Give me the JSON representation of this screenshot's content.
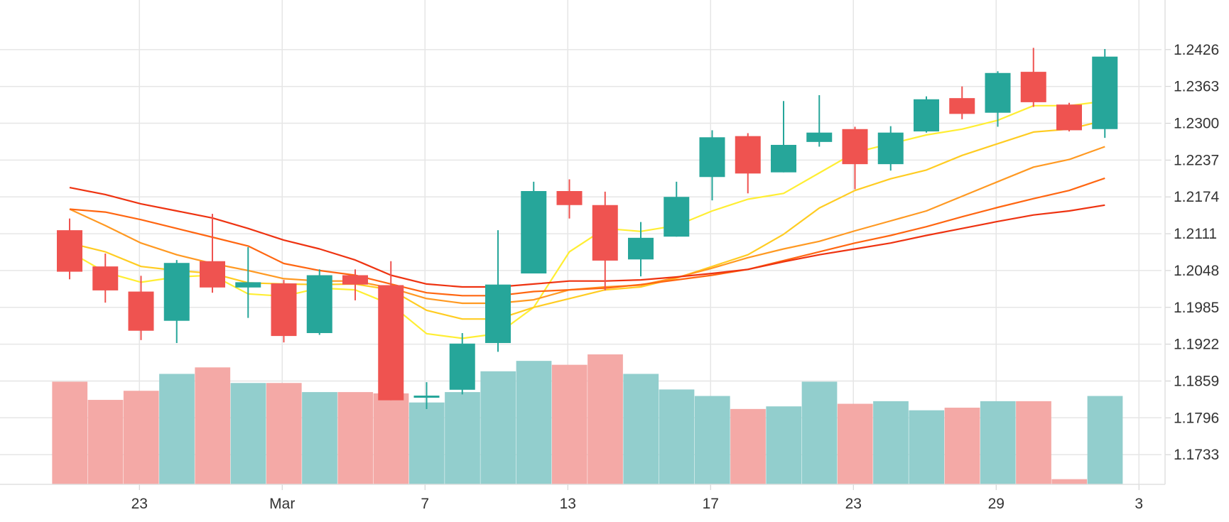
{
  "chart_data": {
    "type": "candlestick",
    "colors": {
      "up": "#26a69a",
      "down": "#ef5350",
      "volume_up": "#92cecd",
      "volume_down": "#f4a9a6",
      "grid": "#e6e6e6",
      "axis_text": "#333333",
      "ma_colors": [
        "#ffee33",
        "#ffcc22",
        "#ff9922",
        "#ff6611",
        "#ee3311"
      ]
    },
    "y_axis": {
      "position": "right",
      "ticks": [
        "1.2426",
        "1.2363",
        "1.2300",
        "1.2237",
        "1.2174",
        "1.2111",
        "1.2048",
        "1.1985",
        "1.1922",
        "1.1859",
        "1.1796",
        "1.1733"
      ],
      "range": [
        1.167,
        1.2489
      ]
    },
    "x_axis": {
      "ticks": [
        {
          "label": "23",
          "index": 1
        },
        {
          "label": "Mar",
          "index": 5
        },
        {
          "label": "7",
          "index": 9
        },
        {
          "label": "13",
          "index": 13
        },
        {
          "label": "17",
          "index": 17
        },
        {
          "label": "23",
          "index": 21
        },
        {
          "label": "29",
          "index": 25
        },
        {
          "label": "3",
          "index": 29
        }
      ]
    },
    "grid": true,
    "candles": [
      {
        "o": 1.2117,
        "h": 1.2137,
        "l": 1.2033,
        "c": 1.2046
      },
      {
        "o": 1.2055,
        "h": 1.2077,
        "l": 1.1993,
        "c": 1.2014
      },
      {
        "o": 1.2012,
        "h": 1.2039,
        "l": 1.1929,
        "c": 1.1945
      },
      {
        "o": 1.1962,
        "h": 1.2066,
        "l": 1.1924,
        "c": 1.2061
      },
      {
        "o": 1.2064,
        "h": 1.2145,
        "l": 1.201,
        "c": 1.2019
      },
      {
        "o": 1.2019,
        "h": 1.2088,
        "l": 1.1967,
        "c": 1.2028
      },
      {
        "o": 1.2026,
        "h": 1.2032,
        "l": 1.1925,
        "c": 1.1936
      },
      {
        "o": 1.1941,
        "h": 1.205,
        "l": 1.1938,
        "c": 1.204
      },
      {
        "o": 1.204,
        "h": 1.205,
        "l": 1.1997,
        "c": 1.2024
      },
      {
        "o": 1.2023,
        "h": 1.2064,
        "l": 1.1826,
        "c": 1.1826
      },
      {
        "o": 1.1833,
        "h": 1.1857,
        "l": 1.1811,
        "c": 1.1834
      },
      {
        "o": 1.1844,
        "h": 1.1941,
        "l": 1.1836,
        "c": 1.1923
      },
      {
        "o": 1.1924,
        "h": 1.2117,
        "l": 1.1909,
        "c": 1.2024
      },
      {
        "o": 1.2043,
        "h": 1.22,
        "l": 1.2043,
        "c": 1.2184
      },
      {
        "o": 1.2184,
        "h": 1.2204,
        "l": 1.2137,
        "c": 1.216
      },
      {
        "o": 1.216,
        "h": 1.2183,
        "l": 1.2014,
        "c": 1.2065
      },
      {
        "o": 1.2067,
        "h": 1.2131,
        "l": 1.2038,
        "c": 1.2104
      },
      {
        "o": 1.2106,
        "h": 1.22,
        "l": 1.2106,
        "c": 1.2174
      },
      {
        "o": 1.2208,
        "h": 1.2288,
        "l": 1.2168,
        "c": 1.2276
      },
      {
        "o": 1.2278,
        "h": 1.2283,
        "l": 1.218,
        "c": 1.2214
      },
      {
        "o": 1.2216,
        "h": 1.2338,
        "l": 1.2216,
        "c": 1.2263
      },
      {
        "o": 1.2268,
        "h": 1.2348,
        "l": 1.226,
        "c": 1.2284
      },
      {
        "o": 1.229,
        "h": 1.2294,
        "l": 1.2187,
        "c": 1.223
      },
      {
        "o": 1.223,
        "h": 1.2295,
        "l": 1.2219,
        "c": 1.2284
      },
      {
        "o": 1.2286,
        "h": 1.2346,
        "l": 1.2284,
        "c": 1.2341
      },
      {
        "o": 1.2343,
        "h": 1.2363,
        "l": 1.2307,
        "c": 1.2316
      },
      {
        "o": 1.2318,
        "h": 1.2389,
        "l": 1.2294,
        "c": 1.2386
      },
      {
        "o": 1.2388,
        "h": 1.2429,
        "l": 1.2328,
        "c": 1.2336
      },
      {
        "o": 1.2332,
        "h": 1.2335,
        "l": 1.2286,
        "c": 1.2288
      },
      {
        "o": 1.229,
        "h": 1.2427,
        "l": 1.2275,
        "c": 1.2414
      }
    ],
    "volume": [
      0.79,
      0.65,
      0.72,
      0.85,
      0.9,
      0.78,
      0.78,
      0.71,
      0.71,
      0.7,
      0.63,
      0.71,
      0.87,
      0.95,
      0.92,
      1.0,
      0.85,
      0.73,
      0.68,
      0.58,
      0.6,
      0.79,
      0.62,
      0.64,
      0.57,
      0.59,
      0.64,
      0.64,
      0.04,
      0.68
    ],
    "moving_averages": [
      [
        1.208,
        1.2045,
        1.2028,
        1.2037,
        1.204,
        1.2008,
        1.2004,
        1.2018,
        1.2015,
        1.199,
        1.194,
        1.1932,
        1.194,
        1.1985,
        1.208,
        1.212,
        1.2115,
        1.2125,
        1.215,
        1.217,
        1.218,
        1.2215,
        1.225,
        1.2265,
        1.228,
        1.229,
        1.2305,
        1.233,
        1.233,
        1.2338
      ],
      [
        1.2095,
        1.208,
        1.2055,
        1.2048,
        1.2043,
        1.2027,
        1.2025,
        1.2024,
        1.2025,
        1.2015,
        1.198,
        1.1965,
        1.1965,
        1.1985,
        1.2,
        1.2015,
        1.202,
        1.2035,
        1.2055,
        1.2075,
        1.211,
        1.2155,
        1.2185,
        1.2205,
        1.222,
        1.2245,
        1.2265,
        1.2285,
        1.229,
        1.2305
      ],
      [
        1.2153,
        1.2125,
        1.2095,
        1.2075,
        1.206,
        1.2048,
        1.2034,
        1.203,
        1.203,
        1.2018,
        1.2,
        1.1992,
        1.1992,
        1.1998,
        1.2015,
        1.202,
        1.2023,
        1.2036,
        1.2052,
        1.207,
        1.2085,
        1.2098,
        1.2116,
        1.2133,
        1.215,
        1.2175,
        1.22,
        1.2225,
        1.2238,
        1.226
      ],
      [
        1.2153,
        1.2148,
        1.2135,
        1.212,
        1.2105,
        1.209,
        1.206,
        1.2048,
        1.204,
        1.2025,
        1.201,
        1.2005,
        1.2005,
        1.2012,
        1.2015,
        1.2018,
        1.2024,
        1.2032,
        1.204,
        1.205,
        1.2065,
        1.208,
        1.2095,
        1.2108,
        1.2123,
        1.214,
        1.2156,
        1.2171,
        1.2185,
        1.2206
      ],
      [
        1.219,
        1.2178,
        1.2162,
        1.215,
        1.2138,
        1.212,
        1.21,
        1.2085,
        1.2066,
        1.204,
        1.2025,
        1.202,
        1.202,
        1.2025,
        1.203,
        1.203,
        1.2032,
        1.2037,
        1.2043,
        1.205,
        1.2063,
        1.2075,
        1.2085,
        1.2095,
        1.2108,
        1.212,
        1.2132,
        1.2143,
        1.215,
        1.216
      ]
    ]
  }
}
